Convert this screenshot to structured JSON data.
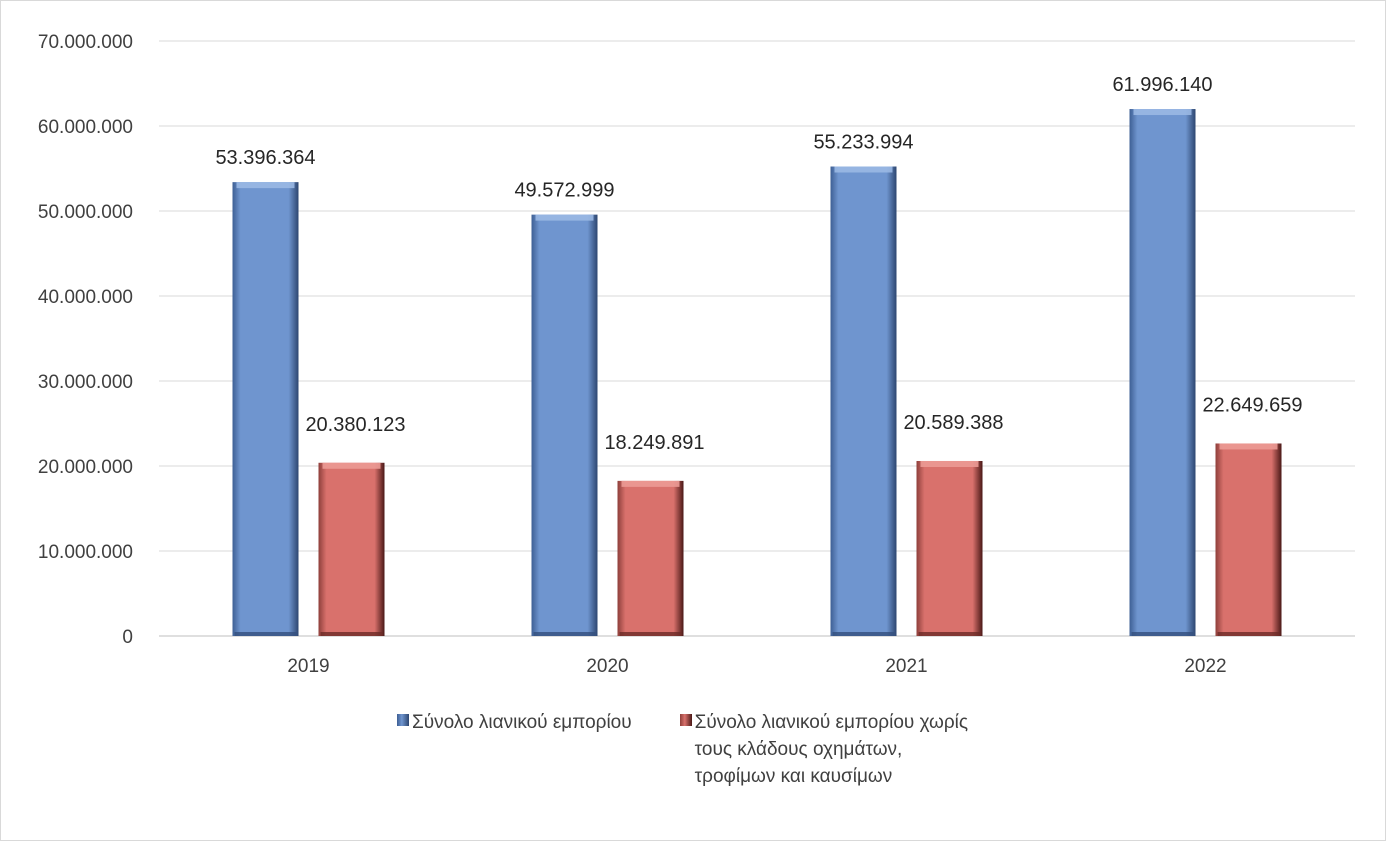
{
  "chart_data": {
    "type": "bar",
    "categories": [
      "2019",
      "2020",
      "2021",
      "2022"
    ],
    "series": [
      {
        "name": "Σύνολο λιανικού εμπορίου",
        "values": [
          53396364,
          49572999,
          55233994,
          61996140
        ],
        "labels": [
          "53.396.364",
          "49.572.999",
          "55.233.994",
          "61.996.140"
        ],
        "color": "#6f95cf"
      },
      {
        "name": "Σύνολο λιανικού εμπορίου χωρίς τους κλάδους οχημάτων, τροφίμων και καυσίμων",
        "values": [
          20380123,
          18249891,
          20589388,
          22649659
        ],
        "labels": [
          "20.380.123",
          "18.249.891",
          "20.589.388",
          "22.649.659"
        ],
        "color": "#d9716c"
      }
    ],
    "ylim": [
      0,
      70000000
    ],
    "yticks": [
      0,
      10000000,
      20000000,
      30000000,
      40000000,
      50000000,
      60000000,
      70000000
    ],
    "ytick_labels": [
      "0",
      "10.000.000",
      "20.000.000",
      "30.000.000",
      "40.000.000",
      "50.000.000",
      "60.000.000",
      "70.000.000"
    ],
    "grid": true,
    "legend_position": "bottom"
  },
  "legend": {
    "items": [
      {
        "label": "Σύνολο λιανικού εμπορίου"
      },
      {
        "label": "Σύνολο λιανικού εμπορίου χωρίς τους κλάδους οχημάτων, τροφίμων και καυσίμων"
      }
    ]
  }
}
